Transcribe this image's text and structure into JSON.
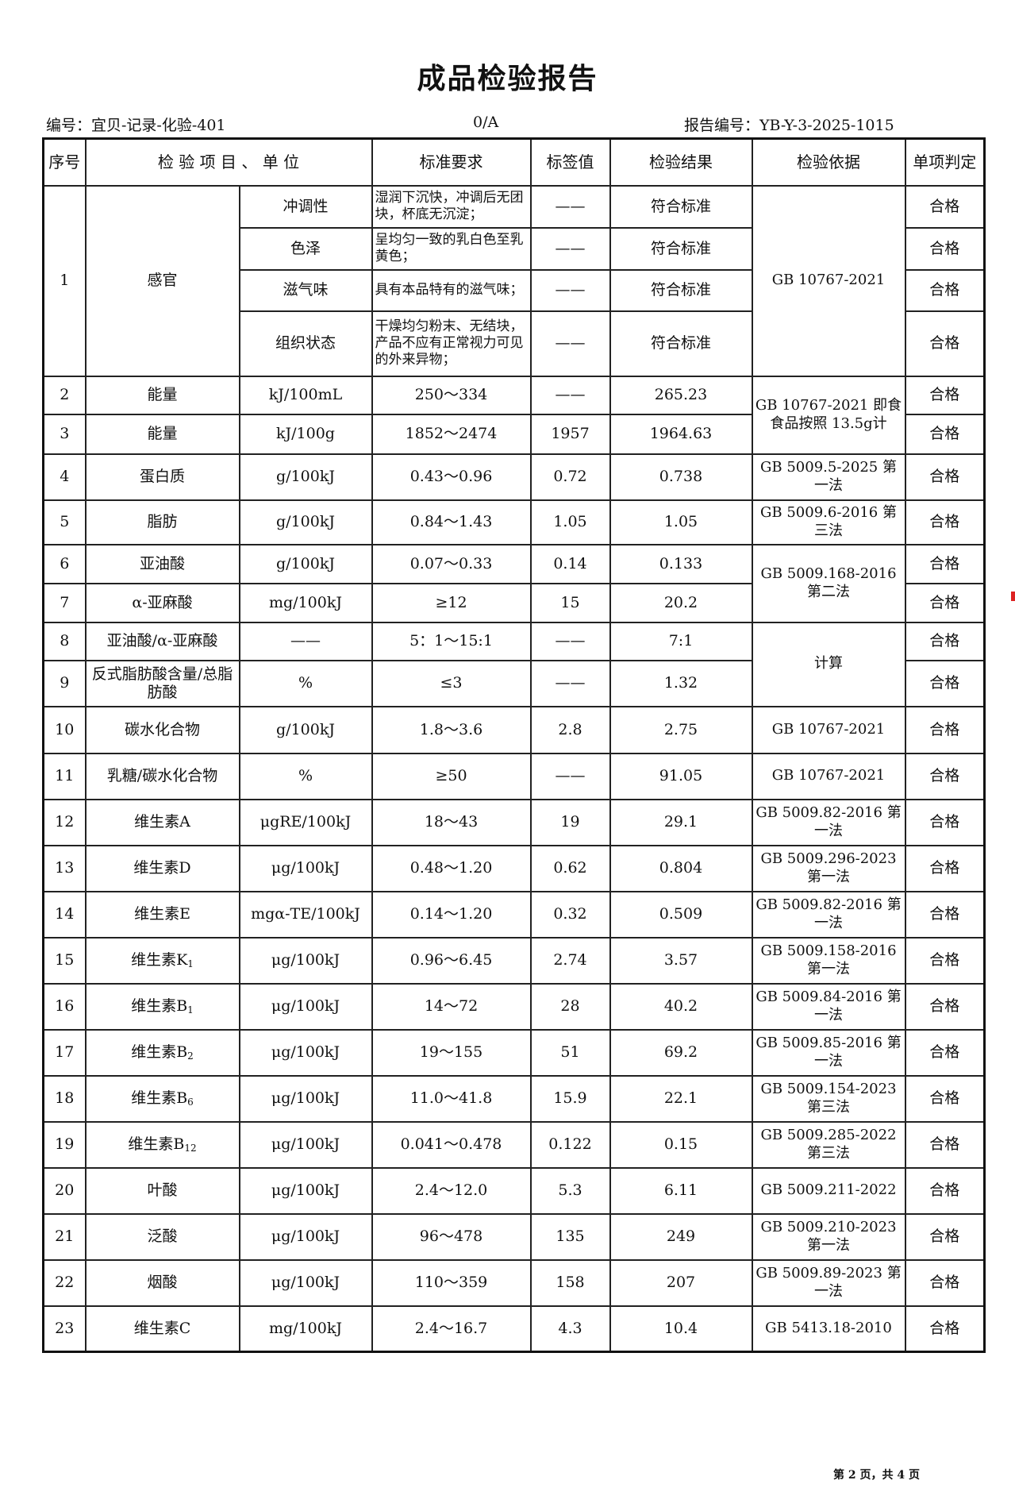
{
  "title": "成品检验报告",
  "doc_code": "编号：宜贝-记录-化验-401",
  "revision": "0/A",
  "report_no": "报告编号：YB-Y-3-2025-1015",
  "headers": {
    "no": "序号",
    "item_unit": "检 验 项 目 、 单 位",
    "standard": "标准要求",
    "label_value": "标签值",
    "result": "检验结果",
    "method": "检验依据",
    "judgment": "单项判定"
  },
  "sensory": {
    "no": "1",
    "item": "感官",
    "method": "GB 10767-2021",
    "subitems": [
      {
        "name": "冲调性",
        "standard": "湿润下沉快，冲调后无团块，杯底无沉淀；",
        "label_value": "——",
        "result": "符合标准",
        "judgment": "合格"
      },
      {
        "name": "色泽",
        "standard": "呈均匀一致的乳白色至乳黄色；",
        "label_value": "——",
        "result": "符合标准",
        "judgment": "合格"
      },
      {
        "name": "滋气味",
        "standard": "具有本品特有的滋气味；",
        "label_value": "——",
        "result": "符合标准",
        "judgment": "合格"
      },
      {
        "name": "组织状态",
        "standard": "干燥均匀粉末、无结块，产品不应有正常视力可见的外来异物；",
        "label_value": "——",
        "result": "符合标准",
        "judgment": "合格"
      }
    ]
  },
  "rows": [
    {
      "no": "2",
      "item": "能量",
      "item_sub": "",
      "unit": "kJ/100mL",
      "standard": "250～334",
      "label_value": "——",
      "result": "265.23",
      "method": "GB 10767-2021 即食食品按照 13.5g计",
      "judgment": "合格"
    },
    {
      "no": "3",
      "item": "能量",
      "item_sub": "",
      "unit": "kJ/100g",
      "standard": "1852～2474",
      "label_value": "1957",
      "result": "1964.63",
      "method": null,
      "judgment": "合格"
    },
    {
      "no": "4",
      "item": "蛋白质",
      "item_sub": "",
      "unit": "g/100kJ",
      "standard": "0.43～0.96",
      "label_value": "0.72",
      "result": "0.738",
      "method": "GB 5009.5-2025 第一法",
      "judgment": "合格"
    },
    {
      "no": "5",
      "item": "脂肪",
      "item_sub": "",
      "unit": "g/100kJ",
      "standard": "0.84～1.43",
      "label_value": "1.05",
      "result": "1.05",
      "method": "GB 5009.6-2016 第三法",
      "judgment": "合格"
    },
    {
      "no": "6",
      "item": "亚油酸",
      "item_sub": "",
      "unit": "g/100kJ",
      "standard": "0.07～0.33",
      "label_value": "0.14",
      "result": "0.133",
      "method": "GB 5009.168-2016 第二法",
      "judgment": "合格"
    },
    {
      "no": "7",
      "item": "α-亚麻酸",
      "item_sub": "",
      "unit": "mg/100kJ",
      "standard": "≥12",
      "label_value": "15",
      "result": "20.2",
      "method": null,
      "judgment": "合格"
    },
    {
      "no": "8",
      "item": "亚油酸/α-亚麻酸",
      "item_sub": "",
      "unit": "——",
      "standard": "5：1～15:1",
      "label_value": "——",
      "result": "7:1",
      "method": "计算",
      "judgment": "合格"
    },
    {
      "no": "9",
      "item": "反式脂肪酸含量/总脂肪酸",
      "item_sub": "",
      "unit": "%",
      "standard": "≤3",
      "label_value": "——",
      "result": "1.32",
      "method": null,
      "judgment": "合格"
    },
    {
      "no": "10",
      "item": "碳水化合物",
      "item_sub": "",
      "unit": "g/100kJ",
      "standard": "1.8～3.6",
      "label_value": "2.8",
      "result": "2.75",
      "method": "GB 10767-2021",
      "judgment": "合格"
    },
    {
      "no": "11",
      "item": "乳糖/碳水化合物",
      "item_sub": "",
      "unit": "%",
      "standard": "≥50",
      "label_value": "——",
      "result": "91.05",
      "method": "GB 10767-2021",
      "judgment": "合格"
    },
    {
      "no": "12",
      "item": "维生素A",
      "item_sub": "",
      "unit": "μgRE/100kJ",
      "standard": "18～43",
      "label_value": "19",
      "result": "29.1",
      "method": "GB 5009.82-2016 第一法",
      "judgment": "合格"
    },
    {
      "no": "13",
      "item": "维生素D",
      "item_sub": "",
      "unit": "μg/100kJ",
      "standard": "0.48～1.20",
      "label_value": "0.62",
      "result": "0.804",
      "method": "GB 5009.296-2023 第一法",
      "judgment": "合格"
    },
    {
      "no": "14",
      "item": "维生素E",
      "item_sub": "",
      "unit": "mgα-TE/100kJ",
      "standard": "0.14～1.20",
      "label_value": "0.32",
      "result": "0.509",
      "method": "GB 5009.82-2016 第一法",
      "judgment": "合格"
    },
    {
      "no": "15",
      "item": "维生素K",
      "item_sub": "1",
      "unit": "μg/100kJ",
      "standard": "0.96～6.45",
      "label_value": "2.74",
      "result": "3.57",
      "method": "GB 5009.158-2016 第一法",
      "judgment": "合格"
    },
    {
      "no": "16",
      "item": "维生素B",
      "item_sub": "1",
      "unit": "μg/100kJ",
      "standard": "14～72",
      "label_value": "28",
      "result": "40.2",
      "method": "GB 5009.84-2016 第一法",
      "judgment": "合格"
    },
    {
      "no": "17",
      "item": "维生素B",
      "item_sub": "2",
      "unit": "μg/100kJ",
      "standard": "19～155",
      "label_value": "51",
      "result": "69.2",
      "method": "GB 5009.85-2016 第一法",
      "judgment": "合格"
    },
    {
      "no": "18",
      "item": "维生素B",
      "item_sub": "6",
      "unit": "μg/100kJ",
      "standard": "11.0～41.8",
      "label_value": "15.9",
      "result": "22.1",
      "method": "GB 5009.154-2023 第三法",
      "judgment": "合格"
    },
    {
      "no": "19",
      "item": "维生素B",
      "item_sub": "12",
      "unit": "μg/100kJ",
      "standard": "0.041～0.478",
      "label_value": "0.122",
      "result": "0.15",
      "method": "GB 5009.285-2022 第三法",
      "judgment": "合格"
    },
    {
      "no": "20",
      "item": "叶酸",
      "item_sub": "",
      "unit": "μg/100kJ",
      "standard": "2.4～12.0",
      "label_value": "5.3",
      "result": "6.11",
      "method": "GB 5009.211-2022",
      "judgment": "合格"
    },
    {
      "no": "21",
      "item": "泛酸",
      "item_sub": "",
      "unit": "μg/100kJ",
      "standard": "96～478",
      "label_value": "135",
      "result": "249",
      "method": "GB 5009.210-2023 第一法",
      "judgment": "合格"
    },
    {
      "no": "22",
      "item": "烟酸",
      "item_sub": "",
      "unit": "μg/100kJ",
      "standard": "110～359",
      "label_value": "158",
      "result": "207",
      "method": "GB 5009.89-2023 第一法",
      "judgment": "合格"
    },
    {
      "no": "23",
      "item": "维生素C",
      "item_sub": "",
      "unit": "mg/100kJ",
      "standard": "2.4～16.7",
      "label_value": "4.3",
      "result": "10.4",
      "method": "GB 5413.18-2010",
      "judgment": "合格"
    }
  ],
  "footer": "第 2 页，共 4 页"
}
